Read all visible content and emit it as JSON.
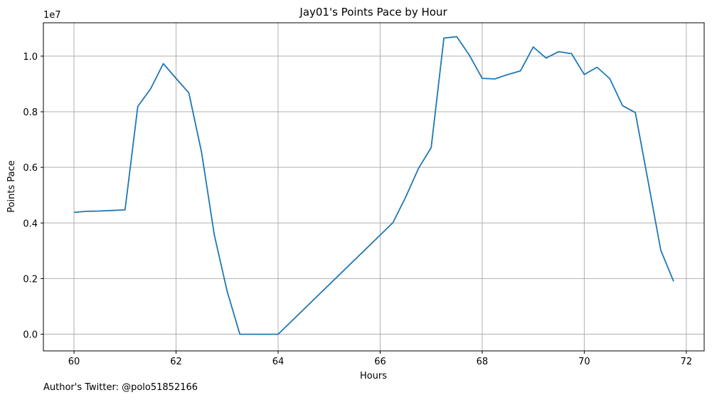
{
  "footer": {
    "text": "Author's Twitter: @polo51852166"
  },
  "chart_data": {
    "type": "line",
    "title": "Jay01's Points Pace by Hour",
    "xlabel": "Hours",
    "ylabel": "Points Pace",
    "y_offset_label": "1e7",
    "xlim": [
      59.4,
      72.35
    ],
    "ylim": [
      -0.06,
      1.12
    ],
    "y_units_note": "",
    "xticks": [
      60,
      62,
      64,
      66,
      68,
      70,
      72
    ],
    "xtick_labels": [
      "60",
      "62",
      "64",
      "66",
      "68",
      "70",
      "72"
    ],
    "yticks": [
      0.0,
      0.2,
      0.4,
      0.6,
      0.8,
      1.0
    ],
    "ytick_labels": [
      "0.0",
      "0.2",
      "0.4",
      "0.6",
      "0.8",
      "1.0"
    ],
    "grid": true,
    "line_color": "#1f77b4",
    "series": [
      {
        "x": [
          60.0,
          60.25,
          60.5,
          60.75,
          61.0,
          61.25,
          61.5,
          61.75,
          62.0,
          62.25,
          62.5,
          62.75,
          63.0,
          63.25,
          63.5,
          63.75,
          64.0,
          66.25,
          66.5,
          66.75,
          67.0,
          67.25,
          67.5,
          67.75,
          68.0,
          68.25,
          68.5,
          68.75,
          69.0,
          69.25,
          69.5,
          69.75,
          70.0,
          70.25,
          70.5,
          70.75,
          71.0,
          71.25,
          71.5,
          71.75
        ],
        "y": [
          0.438,
          0.442,
          0.443,
          0.445,
          0.447,
          0.819,
          0.882,
          0.973,
          0.92,
          0.868,
          0.654,
          0.357,
          0.155,
          0.0,
          0.0,
          0.0,
          0.0,
          0.401,
          0.493,
          0.596,
          0.671,
          1.065,
          1.07,
          1.003,
          0.92,
          0.918,
          0.934,
          0.947,
          1.033,
          0.993,
          1.016,
          1.009,
          0.934,
          0.96,
          0.919,
          0.822,
          0.797,
          0.551,
          0.302,
          0.19
        ]
      }
    ]
  }
}
